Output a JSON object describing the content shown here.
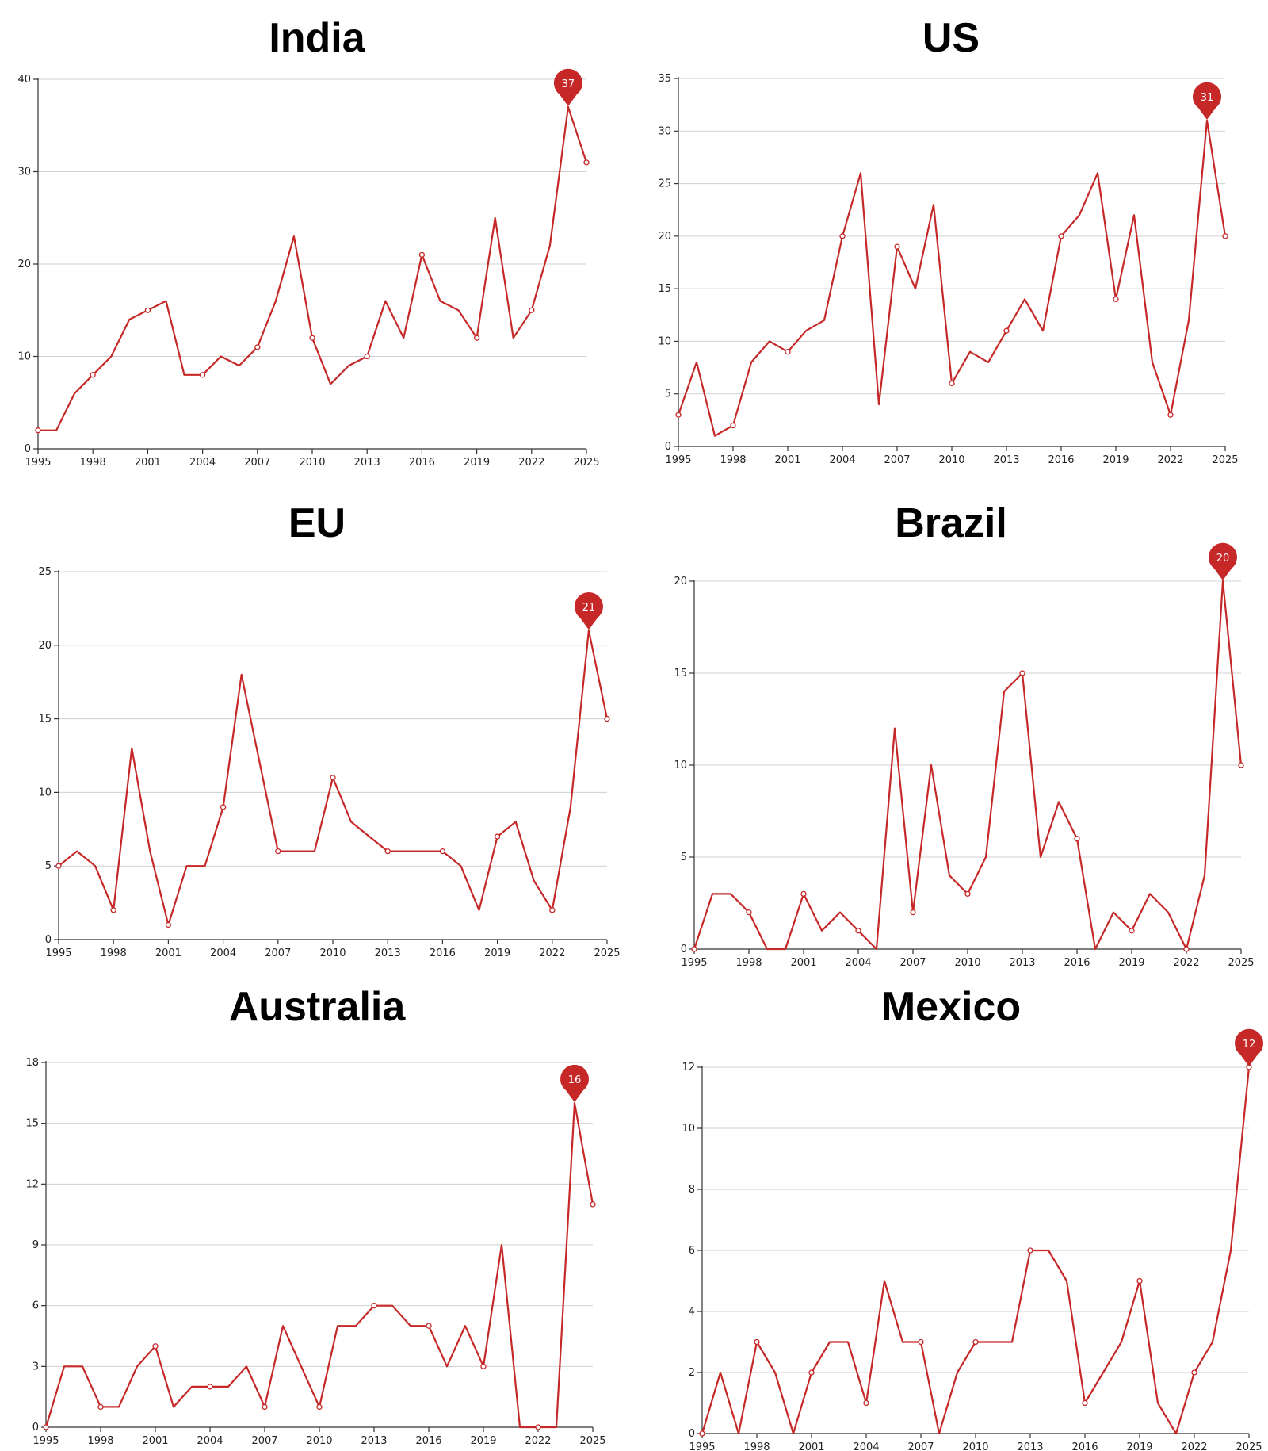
{
  "chart_data": [
    {
      "type": "line",
      "title": "India",
      "x": [
        1995,
        1996,
        1997,
        1998,
        1999,
        2000,
        2001,
        2002,
        2003,
        2004,
        2005,
        2006,
        2007,
        2008,
        2009,
        2010,
        2011,
        2012,
        2013,
        2014,
        2015,
        2016,
        2017,
        2018,
        2019,
        2020,
        2021,
        2022,
        2023,
        2024,
        2025
      ],
      "values": [
        2,
        2,
        6,
        8,
        10,
        14,
        15,
        16,
        8,
        8,
        10,
        9,
        11,
        16,
        23,
        12,
        7,
        9,
        10,
        16,
        12,
        21,
        16,
        15,
        12,
        25,
        12,
        15,
        22,
        37,
        31
      ],
      "ylim": [
        0,
        40
      ],
      "yticks": [
        0,
        10,
        20,
        30,
        40
      ],
      "xticks": [
        1995,
        1998,
        2001,
        2004,
        2007,
        2010,
        2013,
        2016,
        2019,
        2022,
        2025
      ],
      "markers": [
        1995,
        1998,
        2001,
        2004,
        2007,
        2010,
        2013,
        2016,
        2019,
        2022,
        2025
      ],
      "max_label": {
        "x": 2024,
        "value": "37"
      },
      "color": "#c62828",
      "grid": true
    },
    {
      "type": "line",
      "title": "US",
      "x": [
        1995,
        1996,
        1997,
        1998,
        1999,
        2000,
        2001,
        2002,
        2003,
        2004,
        2005,
        2006,
        2007,
        2008,
        2009,
        2010,
        2011,
        2012,
        2013,
        2014,
        2015,
        2016,
        2017,
        2018,
        2019,
        2020,
        2021,
        2022,
        2023,
        2024,
        2025
      ],
      "values": [
        3,
        8,
        1,
        2,
        8,
        10,
        9,
        11,
        12,
        20,
        26,
        4,
        19,
        15,
        23,
        6,
        9,
        8,
        11,
        14,
        11,
        20,
        22,
        26,
        14,
        22,
        8,
        3,
        12,
        31,
        20
      ],
      "ylim": [
        0,
        35
      ],
      "yticks": [
        0,
        5,
        10,
        15,
        20,
        25,
        30,
        35
      ],
      "xticks": [
        1995,
        1998,
        2001,
        2004,
        2007,
        2010,
        2013,
        2016,
        2019,
        2022,
        2025
      ],
      "markers": [
        1995,
        1998,
        2001,
        2004,
        2007,
        2010,
        2013,
        2016,
        2019,
        2022,
        2025
      ],
      "max_label": {
        "x": 2024,
        "value": "31"
      },
      "color": "#c62828",
      "grid": true
    },
    {
      "type": "line",
      "title": "EU",
      "x": [
        1995,
        1996,
        1997,
        1998,
        1999,
        2000,
        2001,
        2002,
        2003,
        2004,
        2005,
        2006,
        2007,
        2008,
        2009,
        2010,
        2011,
        2012,
        2013,
        2014,
        2015,
        2016,
        2017,
        2018,
        2019,
        2020,
        2021,
        2022,
        2023,
        2024,
        2025
      ],
      "values": [
        5,
        6,
        5,
        2,
        13,
        6,
        1,
        5,
        5,
        9,
        18,
        12,
        6,
        6,
        6,
        11,
        8,
        7,
        6,
        6,
        6,
        6,
        5,
        2,
        7,
        8,
        4,
        2,
        9,
        21,
        15
      ],
      "ylim": [
        0,
        25
      ],
      "yticks": [
        0,
        5,
        10,
        15,
        20,
        25
      ],
      "xticks": [
        1995,
        1998,
        2001,
        2004,
        2007,
        2010,
        2013,
        2016,
        2019,
        2022,
        2025
      ],
      "markers": [
        1995,
        1998,
        2001,
        2004,
        2007,
        2010,
        2013,
        2016,
        2019,
        2022,
        2025
      ],
      "max_label": {
        "x": 2024,
        "value": "21"
      },
      "color": "#c62828",
      "grid": true
    },
    {
      "type": "line",
      "title": "Brazil",
      "x": [
        1995,
        1996,
        1997,
        1998,
        1999,
        2000,
        2001,
        2002,
        2003,
        2004,
        2005,
        2006,
        2007,
        2008,
        2009,
        2010,
        2011,
        2012,
        2013,
        2014,
        2015,
        2016,
        2017,
        2018,
        2019,
        2020,
        2021,
        2022,
        2023,
        2024,
        2025
      ],
      "values": [
        0,
        3,
        3,
        2,
        0,
        0,
        3,
        1,
        2,
        1,
        0,
        12,
        2,
        10,
        4,
        3,
        5,
        14,
        15,
        5,
        8,
        6,
        0,
        2,
        1,
        3,
        2,
        0,
        4,
        20,
        10
      ],
      "ylim": [
        0,
        20
      ],
      "yticks": [
        0,
        5,
        10,
        15,
        20
      ],
      "xticks": [
        1995,
        1998,
        2001,
        2004,
        2007,
        2010,
        2013,
        2016,
        2019,
        2022,
        2025
      ],
      "markers": [
        1995,
        1998,
        2001,
        2004,
        2007,
        2010,
        2013,
        2016,
        2019,
        2022,
        2025
      ],
      "max_label": {
        "x": 2024,
        "value": "20"
      },
      "color": "#c62828",
      "grid": true
    },
    {
      "type": "line",
      "title": "Australia",
      "x": [
        1995,
        1996,
        1997,
        1998,
        1999,
        2000,
        2001,
        2002,
        2003,
        2004,
        2005,
        2006,
        2007,
        2008,
        2009,
        2010,
        2011,
        2012,
        2013,
        2014,
        2015,
        2016,
        2017,
        2018,
        2019,
        2020,
        2021,
        2022,
        2023,
        2024,
        2025
      ],
      "values": [
        0,
        3,
        3,
        1,
        1,
        3,
        4,
        1,
        2,
        2,
        2,
        3,
        1,
        5,
        3,
        1,
        5,
        5,
        6,
        6,
        5,
        5,
        3,
        5,
        3,
        9,
        0,
        0,
        0,
        16,
        11
      ],
      "ylim": [
        0,
        18
      ],
      "yticks": [
        0,
        3,
        6,
        9,
        12,
        15,
        18
      ],
      "xticks": [
        1995,
        1998,
        2001,
        2004,
        2007,
        2010,
        2013,
        2016,
        2019,
        2022,
        2025
      ],
      "markers": [
        1995,
        1998,
        2001,
        2004,
        2007,
        2010,
        2013,
        2016,
        2019,
        2022,
        2025
      ],
      "max_label": {
        "x": 2024,
        "value": "16"
      },
      "color": "#c62828",
      "grid": true
    },
    {
      "type": "line",
      "title": "Mexico",
      "x": [
        1995,
        1996,
        1997,
        1998,
        1999,
        2000,
        2001,
        2002,
        2003,
        2004,
        2005,
        2006,
        2007,
        2008,
        2009,
        2010,
        2011,
        2012,
        2013,
        2014,
        2015,
        2016,
        2017,
        2018,
        2019,
        2020,
        2021,
        2022,
        2023,
        2024,
        2025
      ],
      "values": [
        0,
        2,
        0,
        3,
        2,
        0,
        2,
        3,
        3,
        1,
        5,
        3,
        3,
        0,
        2,
        3,
        3,
        3,
        6,
        6,
        5,
        1,
        2,
        3,
        5,
        1,
        0,
        2,
        3,
        6,
        12
      ],
      "ylim": [
        0,
        12
      ],
      "yticks": [
        0,
        2,
        4,
        6,
        8,
        10,
        12
      ],
      "xticks": [
        1995,
        1998,
        2001,
        2004,
        2007,
        2010,
        2013,
        2016,
        2019,
        2022,
        2025
      ],
      "markers": [
        1995,
        1998,
        2001,
        2004,
        2007,
        2010,
        2013,
        2016,
        2019,
        2022,
        2025
      ],
      "max_label": {
        "x": 2025,
        "value": "12"
      },
      "color": "#c62828",
      "grid": true
    }
  ]
}
